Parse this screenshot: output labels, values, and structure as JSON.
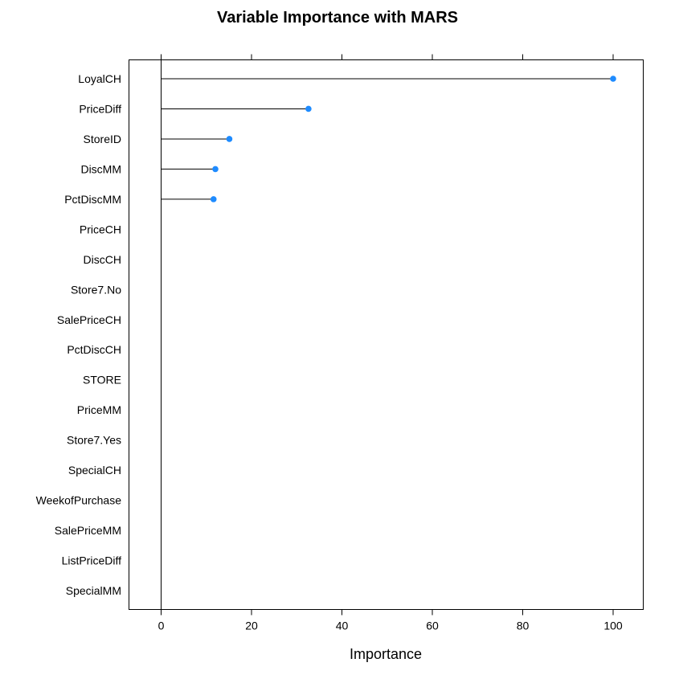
{
  "chart_data": {
    "type": "dotplot",
    "title": "Variable Importance with MARS",
    "xlabel": "Importance",
    "ylabel": "",
    "xlim": [
      -7,
      107
    ],
    "xticks": [
      0,
      20,
      40,
      60,
      80,
      100
    ],
    "grid": false,
    "point_color": "#1E8BFF",
    "categories": [
      "LoyalCH",
      "PriceDiff",
      "StoreID",
      "DiscMM",
      "PctDiscMM",
      "PriceCH",
      "DiscCH",
      "Store7.No",
      "SalePriceCH",
      "PctDiscCH",
      "STORE",
      "PriceMM",
      "Store7.Yes",
      "SpecialCH",
      "WeekofPurchase",
      "SalePriceMM",
      "ListPriceDiff",
      "SpecialMM"
    ],
    "values": [
      100,
      32.6,
      15.1,
      12.0,
      11.6,
      0,
      0,
      0,
      0,
      0,
      0,
      0,
      0,
      0,
      0,
      0,
      0,
      0
    ]
  }
}
